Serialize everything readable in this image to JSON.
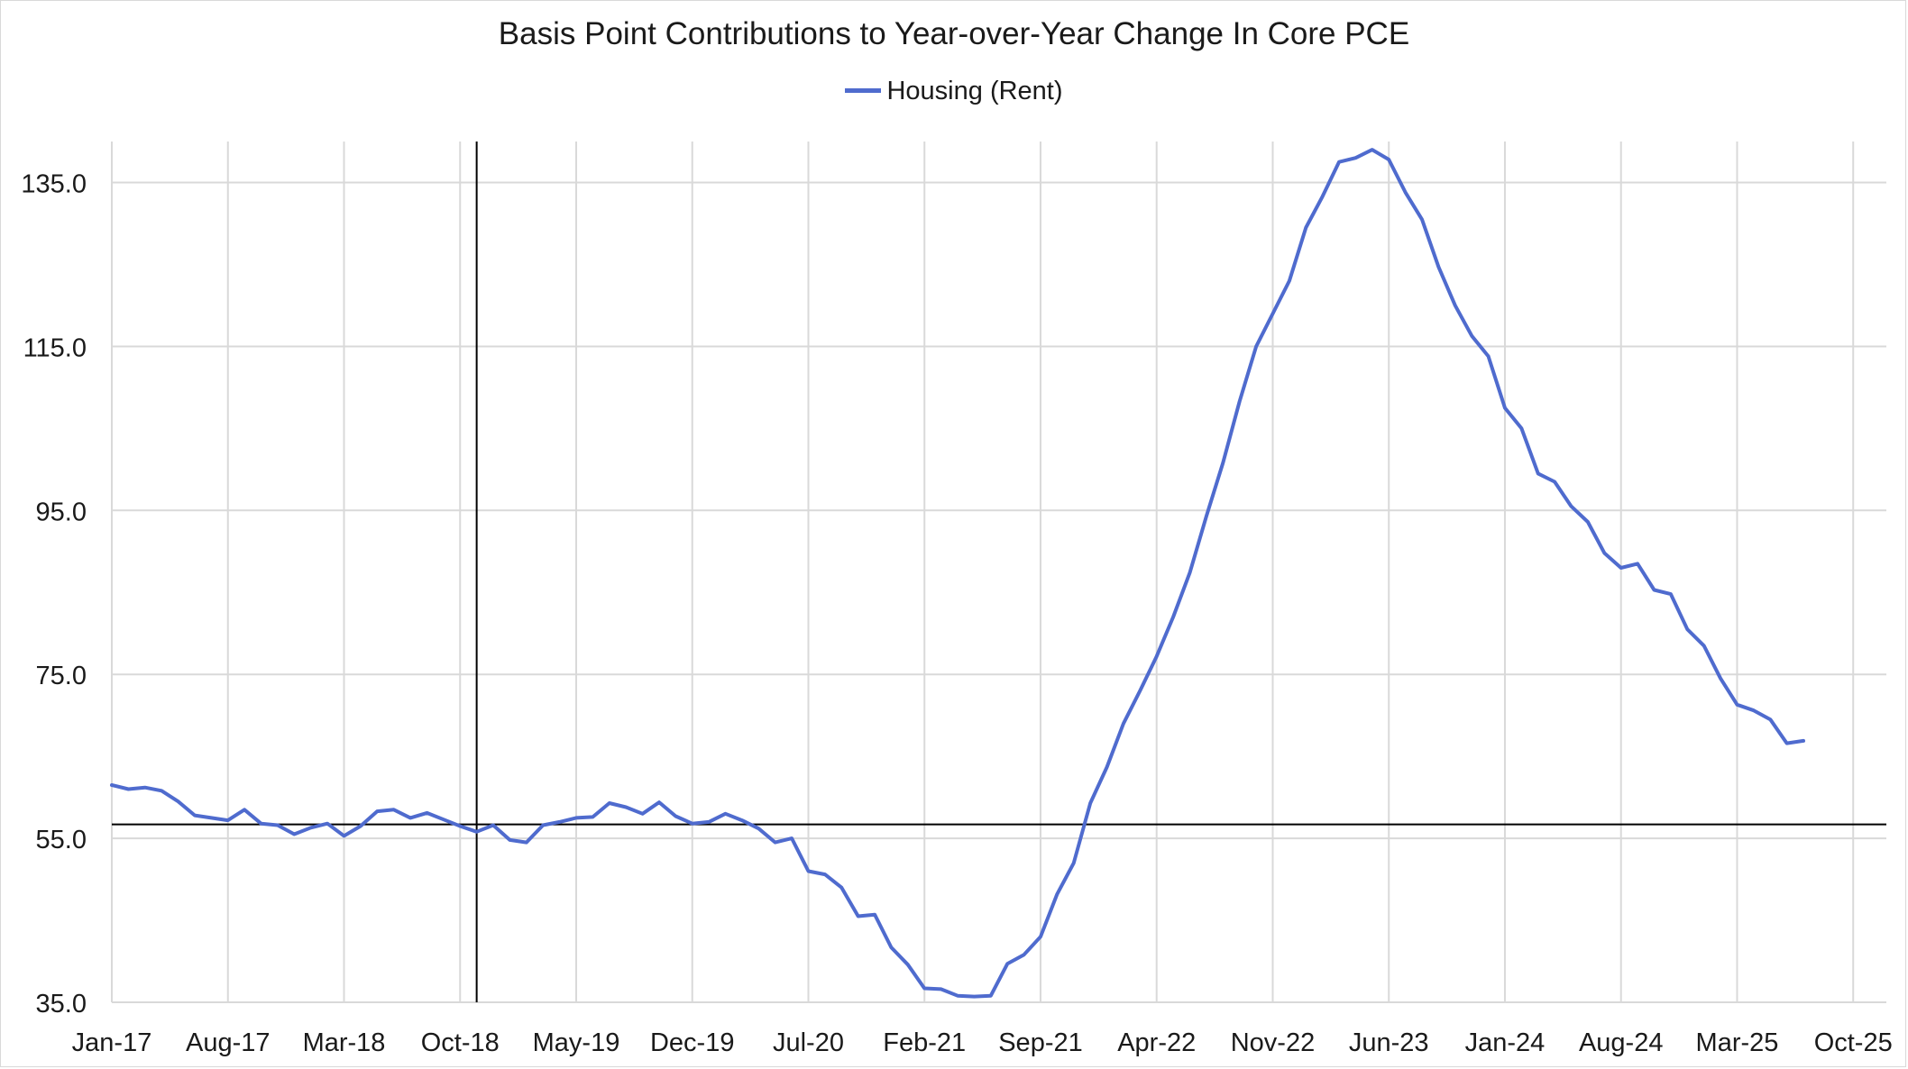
{
  "chart_data": {
    "type": "line",
    "title": "Basis Point Contributions to Year-over-Year Change In Core PCE",
    "legend_position": "top-center",
    "grid": true,
    "ylim": [
      35,
      140
    ],
    "y_ticks": [
      "35.0",
      "55.0",
      "75.0",
      "95.0",
      "115.0",
      "135.0"
    ],
    "y_tick_values": [
      35,
      55,
      75,
      95,
      115,
      135
    ],
    "x_tick_labels": [
      "Jan-17",
      "Aug-17",
      "Mar-18",
      "Oct-18",
      "May-19",
      "Dec-19",
      "Jul-20",
      "Feb-21",
      "Sep-21",
      "Apr-22",
      "Nov-22",
      "Jun-23",
      "Jan-24",
      "Aug-24",
      "Mar-25",
      "Oct-25"
    ],
    "xlim": [
      "Jan-17",
      "Dec-25"
    ],
    "reference_lines": [
      {
        "axis": "x",
        "value": "Nov-18"
      },
      {
        "axis": "y",
        "value": 56.7
      }
    ],
    "series": [
      {
        "name": "Housing (Rent)",
        "color": "#4f6bce",
        "start": "Jan-17",
        "frequency": "monthly",
        "values": [
          61.5,
          61.0,
          61.2,
          60.8,
          59.5,
          57.8,
          57.5,
          57.2,
          58.5,
          56.8,
          56.6,
          55.5,
          56.3,
          56.8,
          55.3,
          56.5,
          58.3,
          58.5,
          57.5,
          58.1,
          57.3,
          56.5,
          55.8,
          56.6,
          54.8,
          54.5,
          56.6,
          57.0,
          57.5,
          57.6,
          59.3,
          58.8,
          58.0,
          59.4,
          57.7,
          56.8,
          57.0,
          58.0,
          57.2,
          56.2,
          54.5,
          55.0,
          51.0,
          50.6,
          49.0,
          45.5,
          45.7,
          41.7,
          39.6,
          36.7,
          36.6,
          35.8,
          35.7,
          35.8,
          39.7,
          40.8,
          43.0,
          48.2,
          52.0,
          59.3,
          63.7,
          69.0,
          73.0,
          77.2,
          82.0,
          87.4,
          94.3,
          100.8,
          108.3,
          115.0,
          119.0,
          123.0,
          129.5,
          133.3,
          137.5,
          138.0,
          139.0,
          137.8,
          133.8,
          130.5,
          124.7,
          120.0,
          116.3,
          113.8,
          107.5,
          105.0,
          99.5,
          98.5,
          95.5,
          93.6,
          89.8,
          88.0,
          88.5,
          85.3,
          84.8,
          80.5,
          78.5,
          74.5,
          71.3,
          70.6,
          69.5,
          66.6,
          66.9
        ]
      }
    ]
  }
}
